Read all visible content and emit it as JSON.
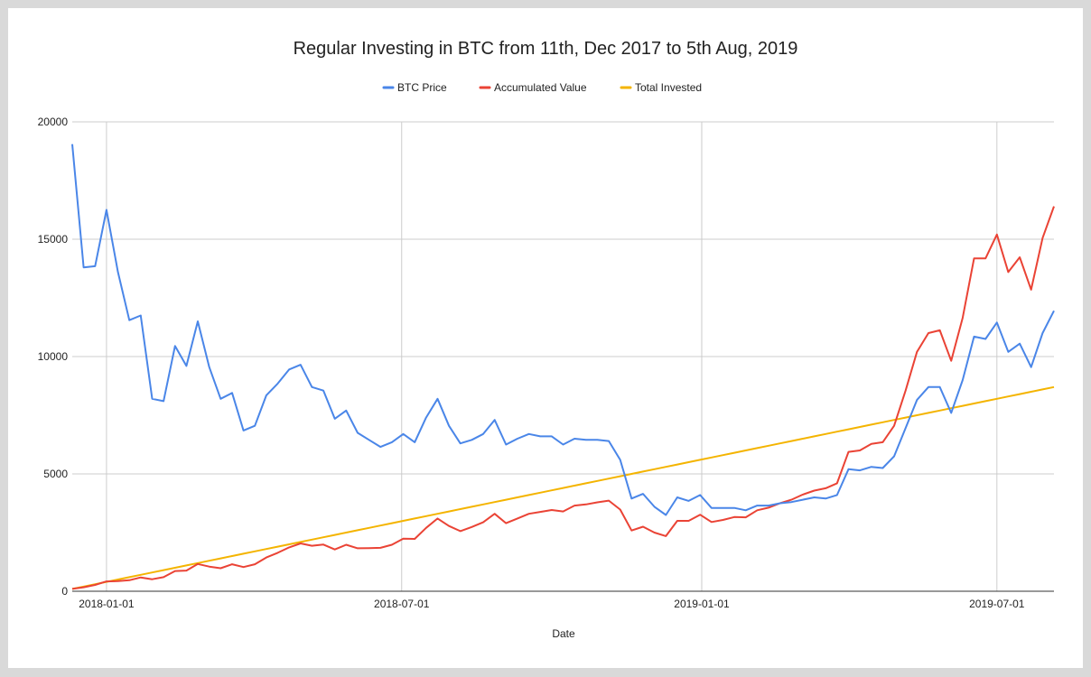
{
  "chart_data": {
    "type": "line",
    "title": "Regular Investing in BTC from 11th, Dec 2017 to 5th Aug, 2019",
    "xlabel": "Date",
    "ylabel": "",
    "ylim": [
      0,
      20000
    ],
    "xlim": [
      "2017-12-11",
      "2019-08-05"
    ],
    "yticks": [
      0,
      5000,
      10000,
      15000,
      20000
    ],
    "xticks": [
      "2018-01-01",
      "2018-07-01",
      "2019-01-01",
      "2019-07-01"
    ],
    "grid": true,
    "legend_position": "top",
    "x": [
      "2017-12-11",
      "2017-12-18",
      "2017-12-25",
      "2018-01-01",
      "2018-01-08",
      "2018-01-15",
      "2018-01-22",
      "2018-01-29",
      "2018-02-05",
      "2018-02-12",
      "2018-02-19",
      "2018-02-26",
      "2018-03-05",
      "2018-03-12",
      "2018-03-19",
      "2018-03-26",
      "2018-04-02",
      "2018-04-09",
      "2018-04-16",
      "2018-04-23",
      "2018-04-30",
      "2018-05-07",
      "2018-05-14",
      "2018-05-21",
      "2018-05-28",
      "2018-06-04",
      "2018-06-11",
      "2018-06-18",
      "2018-06-25",
      "2018-07-02",
      "2018-07-09",
      "2018-07-16",
      "2018-07-23",
      "2018-07-30",
      "2018-08-06",
      "2018-08-13",
      "2018-08-20",
      "2018-08-27",
      "2018-09-03",
      "2018-09-10",
      "2018-09-17",
      "2018-09-24",
      "2018-10-01",
      "2018-10-08",
      "2018-10-15",
      "2018-10-22",
      "2018-10-29",
      "2018-11-05",
      "2018-11-12",
      "2018-11-19",
      "2018-11-26",
      "2018-12-03",
      "2018-12-10",
      "2018-12-17",
      "2018-12-24",
      "2018-12-31",
      "2019-01-07",
      "2019-01-14",
      "2019-01-21",
      "2019-01-28",
      "2019-02-04",
      "2019-02-11",
      "2019-02-18",
      "2019-02-25",
      "2019-03-04",
      "2019-03-11",
      "2019-03-18",
      "2019-03-25",
      "2019-04-01",
      "2019-04-08",
      "2019-04-15",
      "2019-04-22",
      "2019-04-29",
      "2019-05-06",
      "2019-05-13",
      "2019-05-20",
      "2019-05-27",
      "2019-06-03",
      "2019-06-10",
      "2019-06-17",
      "2019-06-24",
      "2019-07-01",
      "2019-07-08",
      "2019-07-15",
      "2019-07-22",
      "2019-07-29",
      "2019-08-05"
    ],
    "series": [
      {
        "name": "BTC Price",
        "color": "#4a86e8",
        "values": [
          19050,
          13800,
          13850,
          16250,
          13600,
          11550,
          11750,
          8200,
          8100,
          10450,
          9600,
          11500,
          9550,
          8200,
          8450,
          6850,
          7050,
          8350,
          8850,
          9450,
          9650,
          8700,
          8550,
          7350,
          7700,
          6750,
          6450,
          6150,
          6350,
          6700,
          6350,
          7400,
          8200,
          7050,
          6300,
          6450,
          6700,
          7300,
          6250,
          6500,
          6700,
          6600,
          6600,
          6250,
          6500,
          6450,
          6450,
          6400,
          5600,
          3950,
          4150,
          3600,
          3250,
          4000,
          3850,
          4100,
          3550,
          3550,
          3550,
          3450,
          3650,
          3650,
          3750,
          3800,
          3900,
          4000,
          3950,
          4100,
          5200,
          5150,
          5300,
          5250,
          5750,
          6950,
          8150,
          8700,
          8700,
          7600,
          9000,
          10850,
          10750,
          11450,
          10200,
          10550,
          9550,
          11000,
          11950
        ]
      },
      {
        "name": "Accumulated Value",
        "color": "#ea4335",
        "values": [
          100,
          170,
          270,
          420,
          430,
          470,
          590,
          510,
          600,
          860,
          880,
          1160,
          1050,
          980,
          1150,
          1030,
          1150,
          1440,
          1640,
          1870,
          2040,
          1940,
          1990,
          1780,
          1980,
          1830,
          1840,
          1850,
          1980,
          2240,
          2230,
          2700,
          3100,
          2780,
          2560,
          2740,
          2940,
          3300,
          2900,
          3100,
          3300,
          3380,
          3460,
          3400,
          3650,
          3700,
          3790,
          3860,
          3480,
          2590,
          2750,
          2500,
          2350,
          3000,
          3000,
          3260,
          2950,
          3040,
          3160,
          3150,
          3450,
          3560,
          3750,
          3900,
          4120,
          4290,
          4390,
          4600,
          5940,
          6000,
          6280,
          6350,
          7050,
          8550,
          10200,
          11000,
          11120,
          9820,
          11650,
          14180,
          14180,
          15200,
          13600,
          14230,
          12850,
          15050,
          16400
        ]
      },
      {
        "name": "Total Invested",
        "color": "#f4b400",
        "values": [
          100,
          200,
          300,
          400,
          500,
          600,
          700,
          800,
          900,
          1000,
          1100,
          1200,
          1300,
          1400,
          1500,
          1600,
          1700,
          1800,
          1900,
          2000,
          2100,
          2200,
          2300,
          2400,
          2500,
          2600,
          2700,
          2800,
          2900,
          3000,
          3100,
          3200,
          3300,
          3400,
          3500,
          3600,
          3700,
          3800,
          3900,
          4000,
          4100,
          4200,
          4300,
          4400,
          4500,
          4600,
          4700,
          4800,
          4900,
          5000,
          5100,
          5200,
          5300,
          5400,
          5500,
          5600,
          5700,
          5800,
          5900,
          6000,
          6100,
          6200,
          6300,
          6400,
          6500,
          6600,
          6700,
          6800,
          6900,
          7000,
          7100,
          7200,
          7300,
          7400,
          7500,
          7600,
          7700,
          7800,
          7900,
          8000,
          8100,
          8200,
          8300,
          8400,
          8500,
          8600,
          8700
        ]
      }
    ]
  }
}
